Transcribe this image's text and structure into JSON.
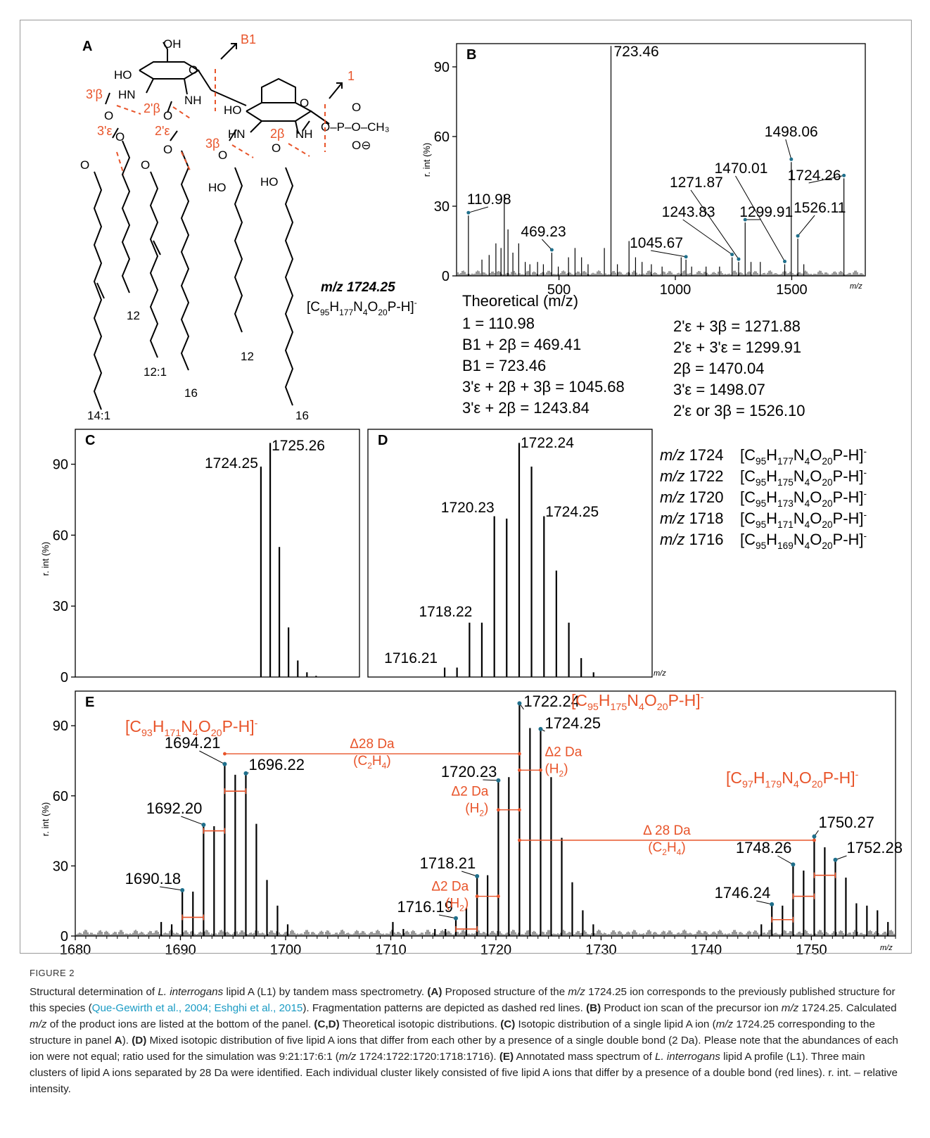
{
  "figure": {
    "label": "FIGURE 2",
    "caption": {
      "s1_a": "Structural determination of ",
      "s1_b": "L. interrogans",
      "s1_c": " lipid A (L1) by tandem mass spectrometry. ",
      "a_tag": "(A)",
      "a_text1": " Proposed structure of the ",
      "a_mz": "m/z",
      "a_text2": " 1724.25 ion corresponds to the previously published structure for this species (",
      "a_cite": "Que-Gewirth et al., 2004; Eshghi et al., 2015",
      "a_text3": "). Fragmentation patterns are depicted as dashed red lines. ",
      "b_tag": "(B)",
      "b_text1": " Product ion scan of the precursor ion ",
      "b_mz": "m/z",
      "b_text2": " 1724.25. Calculated ",
      "b_mz2": "m/z",
      "b_text3": " of the product ions are listed at the bottom of the panel. ",
      "cd_tag": "(C,D)",
      "cd_text": " Theoretical isotopic distributions. ",
      "c_tag": "(C)",
      "c_text1": " Isotopic distribution of a single lipid A ion (",
      "c_mz": "m/z",
      "c_text2": " 1724.25 corresponding to the structure in panel ",
      "c_a": "A",
      "c_text3": "). ",
      "d_tag": "(D)",
      "d_text1": " Mixed isotopic distribution of five lipid A ions that differ from each other by a presence of a single double bond (2 Da). Please note that the abundances of each ion were not equal; ratio used for the simulation was 9:21:17:6:1 (",
      "d_mz": "m/z",
      "d_text2": " 1724:1722:1720:1718:1716). ",
      "e_tag": "(E)",
      "e_text1": " Annotated mass spectrum of ",
      "e_species": "L. interrogans",
      "e_text2": " lipid A profile (L1). Three main clusters of lipid A ions separated by 28 Da were identified. Each individual cluster likely consisted of five lipid A ions that differ by a presence of a double bond (red lines). r. int. – relative intensity."
    }
  },
  "colors": {
    "accent": "#e8542a",
    "annotation_dot": "#1f6f8b",
    "ink": "#000000"
  },
  "panel_a": {
    "letter": "A",
    "mz_label": "m/z 1724.25",
    "formula": "[C95H177N4O20P-H]-",
    "chain_labels": [
      "14:1",
      "12",
      "12:1",
      "16",
      "12",
      "16"
    ],
    "cleavage_labels": [
      "B1",
      "1",
      "3'β",
      "2'β",
      "3'ε",
      "2'ε",
      "3β",
      "2β"
    ],
    "atom_labels": [
      "OH",
      "HO",
      "HN",
      "NH",
      "HO",
      "O",
      "HN",
      "NH",
      "O",
      "HO",
      "HO",
      "O-P-O-CH3",
      "O",
      "O⊖"
    ]
  },
  "chart_data": [
    {
      "id": "B",
      "type": "bar",
      "title": "B",
      "ylabel": "r. int (%)",
      "xlabel": "m/z",
      "xlim": [
        60,
        1810
      ],
      "ylim": [
        0,
        100
      ],
      "xticks": [
        500,
        1000,
        1500
      ],
      "yticks": [
        0,
        30,
        60,
        90
      ],
      "grid": false,
      "peaks": [
        [
          110.98,
          26
        ],
        [
          169,
          7
        ],
        [
          200,
          9
        ],
        [
          229,
          14
        ],
        [
          251,
          12
        ],
        [
          265,
          35
        ],
        [
          281,
          20
        ],
        [
          302,
          10
        ],
        [
          327,
          14
        ],
        [
          355,
          6
        ],
        [
          375,
          5
        ],
        [
          408,
          6
        ],
        [
          433,
          5
        ],
        [
          469.23,
          10
        ],
        [
          497,
          4
        ],
        [
          541,
          8
        ],
        [
          569,
          12
        ],
        [
          597,
          8
        ],
        [
          625,
          5
        ],
        [
          695,
          12
        ],
        [
          723.46,
          99
        ],
        [
          751,
          5
        ],
        [
          801,
          15
        ],
        [
          829,
          8
        ],
        [
          857,
          6
        ],
        [
          897,
          5
        ],
        [
          943,
          4
        ],
        [
          1025,
          8
        ],
        [
          1045.67,
          7
        ],
        [
          1070,
          4
        ],
        [
          1132,
          4
        ],
        [
          1190,
          4
        ],
        [
          1243.83,
          8
        ],
        [
          1271.87,
          6
        ],
        [
          1299.91,
          23
        ],
        [
          1325,
          6
        ],
        [
          1365,
          6
        ],
        [
          1470.01,
          5
        ],
        [
          1498.06,
          49
        ],
        [
          1526.11,
          16
        ],
        [
          1552,
          5
        ],
        [
          1724.26,
          42
        ]
      ],
      "annotations": [
        {
          "mz": 110.98,
          "label": "110.98"
        },
        {
          "mz": 469.23,
          "label": "469.23"
        },
        {
          "mz": 723.46,
          "label": "723.46"
        },
        {
          "mz": 1045.67,
          "label": "1045.67"
        },
        {
          "mz": 1243.83,
          "label": "1243.83"
        },
        {
          "mz": 1271.87,
          "label": "1271.87"
        },
        {
          "mz": 1299.91,
          "label": "1299.91"
        },
        {
          "mz": 1470.01,
          "label": "1470.01"
        },
        {
          "mz": 1498.06,
          "label": "1498.06"
        },
        {
          "mz": 1526.11,
          "label": "1526.11"
        },
        {
          "mz": 1724.26,
          "label": "1724.26"
        }
      ],
      "theoretical_title": "Theoretical (m/z)",
      "theoretical_left": [
        "1 = 110.98",
        "B1 + 2β = 469.41",
        "B1 = 723.46",
        "3'ε + 2β + 3β = 1045.68",
        "3'ε + 2β = 1243.84"
      ],
      "theoretical_right": [
        "2'ε + 3β = 1271.88",
        "2'ε + 3'ε = 1299.91",
        "2β = 1470.04",
        "3'ε = 1498.07",
        "2'ε or 3β = 1526.10"
      ]
    },
    {
      "id": "C",
      "type": "bar",
      "title": "C",
      "ylabel": "r. int (%)",
      "xlim": [
        1704,
        1735
      ],
      "ylim": [
        0,
        100
      ],
      "yticks": [
        0,
        30,
        60,
        90
      ],
      "grid": false,
      "peaks": [
        [
          1724.25,
          89
        ],
        [
          1725.26,
          99
        ],
        [
          1726.26,
          55
        ],
        [
          1727.26,
          21
        ],
        [
          1728.27,
          7
        ],
        [
          1729.27,
          2
        ],
        [
          1730.27,
          0.5
        ]
      ],
      "annotations": [
        {
          "mz": 1724.25,
          "label": "1724.25"
        },
        {
          "mz": 1725.26,
          "label": "1725.26"
        }
      ]
    },
    {
      "id": "D",
      "type": "bar",
      "title": "D",
      "xlabel": "m/z",
      "xlim": [
        1710,
        1733
      ],
      "ylim": [
        0,
        100
      ],
      "grid": false,
      "peaks": [
        [
          1716.21,
          4
        ],
        [
          1717.21,
          4
        ],
        [
          1718.22,
          23
        ],
        [
          1719.22,
          23
        ],
        [
          1720.23,
          68
        ],
        [
          1721.23,
          67
        ],
        [
          1722.24,
          99
        ],
        [
          1723.24,
          89
        ],
        [
          1724.25,
          68
        ],
        [
          1725.25,
          45
        ],
        [
          1726.26,
          23
        ],
        [
          1727.26,
          8
        ],
        [
          1728.26,
          2
        ]
      ],
      "annotations": [
        {
          "mz": 1716.21,
          "label": "1716.21"
        },
        {
          "mz": 1718.22,
          "label": "1718.22"
        },
        {
          "mz": 1720.23,
          "label": "1720.23"
        },
        {
          "mz": 1722.24,
          "label": "1722.24"
        },
        {
          "mz": 1724.25,
          "label": "1724.25"
        }
      ],
      "legend": [
        {
          "mz": "m/z",
          "text": " 1724 [C95H177N4O20P-H]-"
        },
        {
          "mz": "m/z",
          "text": " 1722 [C95H175N4O20P-H]-"
        },
        {
          "mz": "m/z",
          "text": " 1720 [C95H173N4O20P-H]-"
        },
        {
          "mz": "m/z",
          "text": " 1718 [C95H171N4O20P-H]-"
        },
        {
          "mz": "m/z",
          "text": " 1716 [C95H169N4O20P-H]-"
        }
      ]
    },
    {
      "id": "E",
      "type": "bar",
      "title": "E",
      "ylabel": "r. int (%)",
      "xlabel": "m/z",
      "xlim": [
        1680,
        1758
      ],
      "ylim": [
        0,
        100
      ],
      "xticks": [
        1680,
        1690,
        1700,
        1710,
        1720,
        1730,
        1740,
        1750
      ],
      "yticks": [
        0,
        30,
        60,
        90
      ],
      "grid": false,
      "peaks": [
        [
          1688.17,
          6
        ],
        [
          1689.17,
          5
        ],
        [
          1690.18,
          19
        ],
        [
          1691.19,
          19
        ],
        [
          1692.2,
          47
        ],
        [
          1693.2,
          47
        ],
        [
          1694.21,
          73
        ],
        [
          1695.21,
          69
        ],
        [
          1696.22,
          69
        ],
        [
          1697.22,
          48
        ],
        [
          1698.23,
          24
        ],
        [
          1699.23,
          13
        ],
        [
          1700.2,
          5
        ],
        [
          1710.2,
          6
        ],
        [
          1711.2,
          3
        ],
        [
          1714.2,
          3
        ],
        [
          1715.2,
          3
        ],
        [
          1716.19,
          7
        ],
        [
          1717.19,
          12
        ],
        [
          1718.21,
          25
        ],
        [
          1719.21,
          26
        ],
        [
          1720.23,
          66
        ],
        [
          1721.23,
          68
        ],
        [
          1722.24,
          99
        ],
        [
          1723.24,
          89
        ],
        [
          1724.25,
          88
        ],
        [
          1725.25,
          68
        ],
        [
          1726.26,
          42
        ],
        [
          1727.26,
          23
        ],
        [
          1728.26,
          11
        ],
        [
          1729.26,
          5
        ],
        [
          1745.24,
          5
        ],
        [
          1746.24,
          13
        ],
        [
          1747.25,
          13
        ],
        [
          1748.26,
          30
        ],
        [
          1749.26,
          28
        ],
        [
          1750.27,
          42
        ],
        [
          1751.27,
          38
        ],
        [
          1752.28,
          32
        ],
        [
          1753.28,
          25
        ],
        [
          1754.28,
          14
        ],
        [
          1755.28,
          13
        ],
        [
          1756.28,
          11
        ],
        [
          1757.28,
          6
        ]
      ],
      "annotations": [
        {
          "mz": 1690.18,
          "label": "1690.18"
        },
        {
          "mz": 1692.2,
          "label": "1692.20"
        },
        {
          "mz": 1694.21,
          "label": "1694.21"
        },
        {
          "mz": 1696.22,
          "label": "1696.22"
        },
        {
          "mz": 1716.19,
          "label": "1716.19"
        },
        {
          "mz": 1718.21,
          "label": "1718.21"
        },
        {
          "mz": 1720.23,
          "label": "1720.23"
        },
        {
          "mz": 1722.24,
          "label": "1722.24"
        },
        {
          "mz": 1724.25,
          "label": "1724.25"
        },
        {
          "mz": 1746.24,
          "label": "1746.24"
        },
        {
          "mz": 1748.26,
          "label": "1748.26"
        },
        {
          "mz": 1750.27,
          "label": "1750.27"
        },
        {
          "mz": 1752.28,
          "label": "1752.28"
        }
      ],
      "cluster_labels": [
        "[C93H171N4O20P-H]-",
        "[C95H175N4O20P-H]-",
        "[C97H179N4O20P-H]-"
      ],
      "brackets": [
        {
          "from": 1694.21,
          "to": 1722.24,
          "y": 78,
          "label": "Δ28 Da",
          "sub": "(C2H4)"
        },
        {
          "from": 1722.24,
          "to": 1750.27,
          "y": 41,
          "label": "Δ 28 Da",
          "sub": "(C2H4)"
        },
        {
          "from": 1722.24,
          "to": 1724.25,
          "y": 71,
          "label": "Δ2 Da",
          "sub": "(H2)"
        },
        {
          "from": 1720.23,
          "to": 1722.24,
          "y": 54,
          "label": "Δ2 Da",
          "sub": "(H2)"
        },
        {
          "from": 1718.21,
          "to": 1720.23,
          "y": 17,
          "label": "Δ2 Da",
          "sub": "(H2)"
        }
      ],
      "small_brackets": [
        {
          "from": 1690.18,
          "to": 1692.2,
          "y": 8
        },
        {
          "from": 1692.2,
          "to": 1694.21,
          "y": 45
        },
        {
          "from": 1694.21,
          "to": 1696.22,
          "y": 62
        },
        {
          "from": 1716.19,
          "to": 1718.21,
          "y": 3
        },
        {
          "from": 1746.24,
          "to": 1748.26,
          "y": 7
        },
        {
          "from": 1748.26,
          "to": 1750.27,
          "y": 17
        },
        {
          "from": 1750.27,
          "to": 1752.28,
          "y": 26
        }
      ]
    }
  ]
}
